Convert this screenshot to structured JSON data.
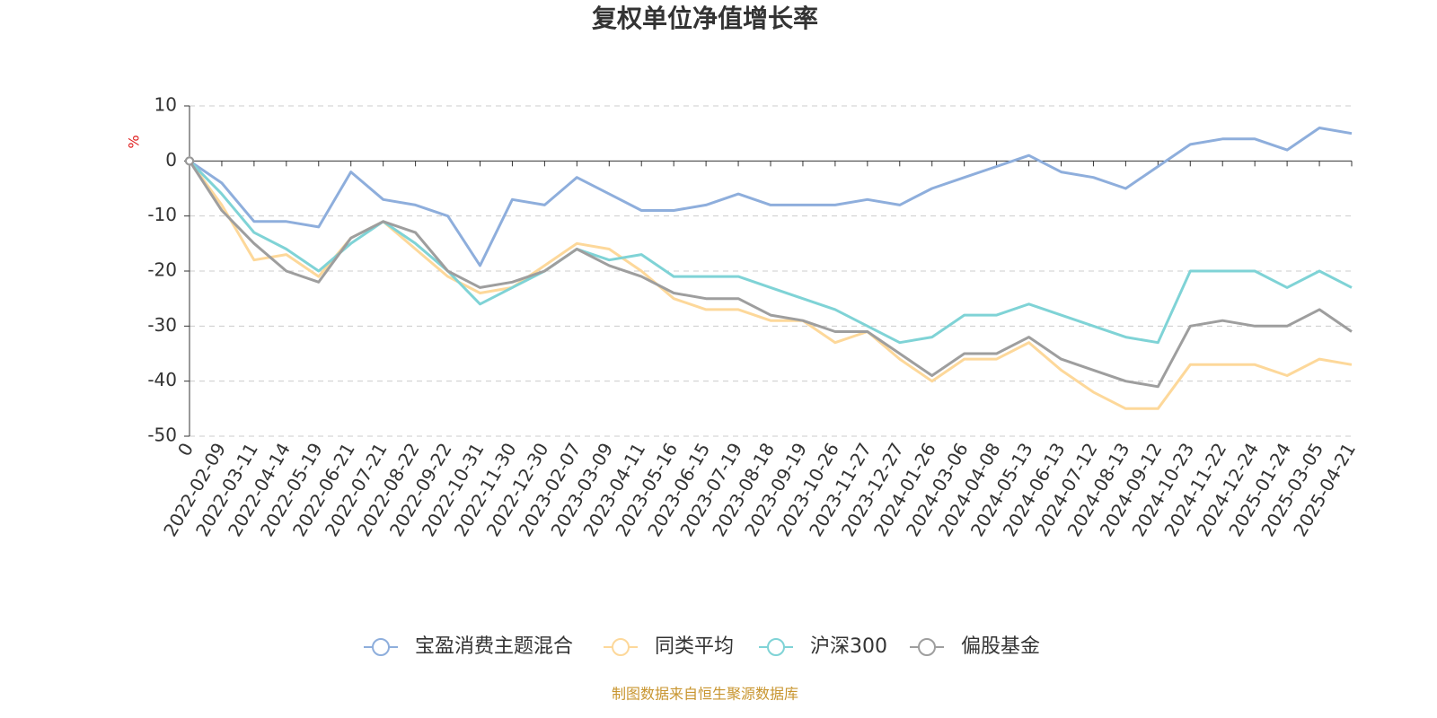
{
  "chart_data": {
    "type": "line",
    "title": "复权单位净值增长率",
    "y_label": "%",
    "source": "制图数据来自恒生聚源数据库",
    "categories": [
      "0",
      "2022-02-09",
      "2022-03-11",
      "2022-04-14",
      "2022-05-19",
      "2022-06-21",
      "2022-07-21",
      "2022-08-22",
      "2022-09-22",
      "2022-10-31",
      "2022-11-30",
      "2022-12-30",
      "2023-02-07",
      "2023-03-09",
      "2023-04-11",
      "2023-05-16",
      "2023-06-15",
      "2023-07-19",
      "2023-08-18",
      "2023-09-19",
      "2023-10-26",
      "2023-11-27",
      "2023-12-27",
      "2024-01-26",
      "2024-03-06",
      "2024-04-08",
      "2024-05-13",
      "2024-06-13",
      "2024-07-12",
      "2024-08-13",
      "2024-09-12",
      "2024-10-23",
      "2024-11-22",
      "2024-12-24",
      "2025-01-24",
      "2025-03-05",
      "2025-04-21"
    ],
    "series": [
      {
        "name": "宝盈消费主题混合",
        "color": "#8eaedc",
        "values": [
          0,
          -4,
          -11,
          -11,
          -12,
          -2,
          -7,
          -8,
          -10,
          -19,
          -7,
          -8,
          -3,
          -6,
          -9,
          -9,
          -8,
          -6,
          -8,
          -8,
          -8,
          -7,
          -8,
          -5,
          -3,
          -1,
          1,
          -2,
          -3,
          -5,
          -1,
          3,
          4,
          4,
          2,
          6,
          5
        ]
      },
      {
        "name": "同类平均",
        "color": "#fdd89a",
        "values": [
          0,
          -8,
          -18,
          -17,
          -21,
          -14,
          -11,
          -16,
          -21,
          -24,
          -23,
          -19,
          -15,
          -16,
          -20,
          -25,
          -27,
          -27,
          -29,
          -29,
          -33,
          -31,
          -36,
          -40,
          -36,
          -36,
          -33,
          -38,
          -42,
          -45,
          -45,
          -37,
          -37,
          -37,
          -39,
          -36,
          -37
        ]
      },
      {
        "name": "沪深300",
        "color": "#7fd3d6",
        "values": [
          0,
          -6,
          -13,
          -16,
          -20,
          -15,
          -11,
          -15,
          -20,
          -26,
          -23,
          -20,
          -16,
          -18,
          -17,
          -21,
          -21,
          -21,
          -23,
          -25,
          -27,
          -30,
          -33,
          -32,
          -28,
          -28,
          -26,
          -28,
          -30,
          -32,
          -33,
          -20,
          -20,
          -20,
          -23,
          -20,
          -23
        ]
      },
      {
        "name": "偏股基金",
        "color": "#9e9e9e",
        "values": [
          0,
          -9,
          -15,
          -20,
          -22,
          -14,
          -11,
          -13,
          -20,
          -23,
          -22,
          -20,
          -16,
          -19,
          -21,
          -24,
          -25,
          -25,
          -28,
          -29,
          -31,
          -31,
          -35,
          -39,
          -35,
          -35,
          -32,
          -36,
          -38,
          -40,
          -41,
          -30,
          -29,
          -30,
          -30,
          -27,
          -31
        ]
      }
    ],
    "ylim": [
      -50,
      10
    ],
    "yticks": [
      -50,
      -40,
      -30,
      -20,
      -10,
      0,
      10
    ],
    "grid": true
  }
}
